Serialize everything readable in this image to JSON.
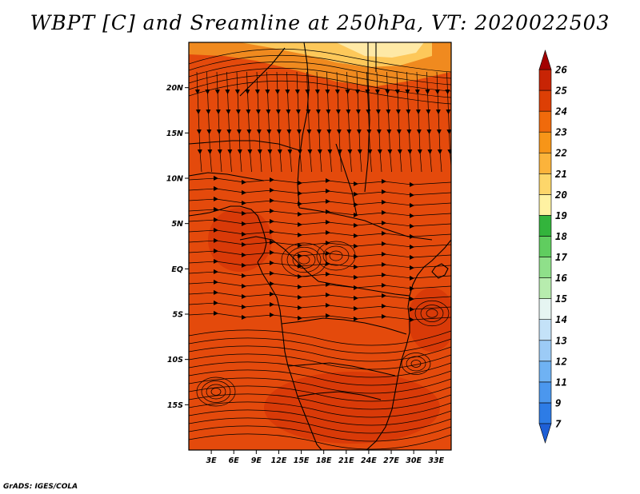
{
  "title": "WBPT [C] and Sreamline at 250hPa, VT: 2020022503",
  "footer": "GrADS: IGES/COLA",
  "map": {
    "lon_range": [
      0,
      35
    ],
    "lat_range": [
      -20,
      25
    ],
    "x_ticks": [
      "3E",
      "6E",
      "9E",
      "12E",
      "15E",
      "18E",
      "21E",
      "24E",
      "27E",
      "30E",
      "33E"
    ],
    "x_tick_values": [
      3,
      6,
      9,
      12,
      15,
      18,
      21,
      24,
      27,
      30,
      33
    ],
    "y_ticks": [
      "20N",
      "15N",
      "10N",
      "5N",
      "EQ",
      "5S",
      "10S",
      "15S"
    ],
    "y_tick_values": [
      20,
      15,
      10,
      5,
      0,
      -5,
      -10,
      -15
    ]
  },
  "colorbar": {
    "labels": [
      "7",
      "9",
      "11",
      "12",
      "13",
      "14",
      "15",
      "16",
      "17",
      "18",
      "19",
      "20",
      "21",
      "22",
      "23",
      "24",
      "25",
      "26"
    ],
    "colors": [
      "#1e5fd6",
      "#2d7ce6",
      "#4b97ee",
      "#6fb2f3",
      "#9ccbf6",
      "#c4e2f8",
      "#e6f5f2",
      "#b7ecae",
      "#8fe08a",
      "#60cd5f",
      "#33b43c",
      "#fff2a2",
      "#fdd66a",
      "#fbb33b",
      "#f79518",
      "#f06a0b",
      "#dd3f05",
      "#c82405",
      "#b70f03",
      "#a30000"
    ]
  },
  "field_colors": {
    "dominant": "#e44a0c",
    "warm_patch": "#d93a08",
    "cool_north": "#fdc85a",
    "cool_north_light": "#fee9a6",
    "mid_orange": "#f08a1f"
  }
}
